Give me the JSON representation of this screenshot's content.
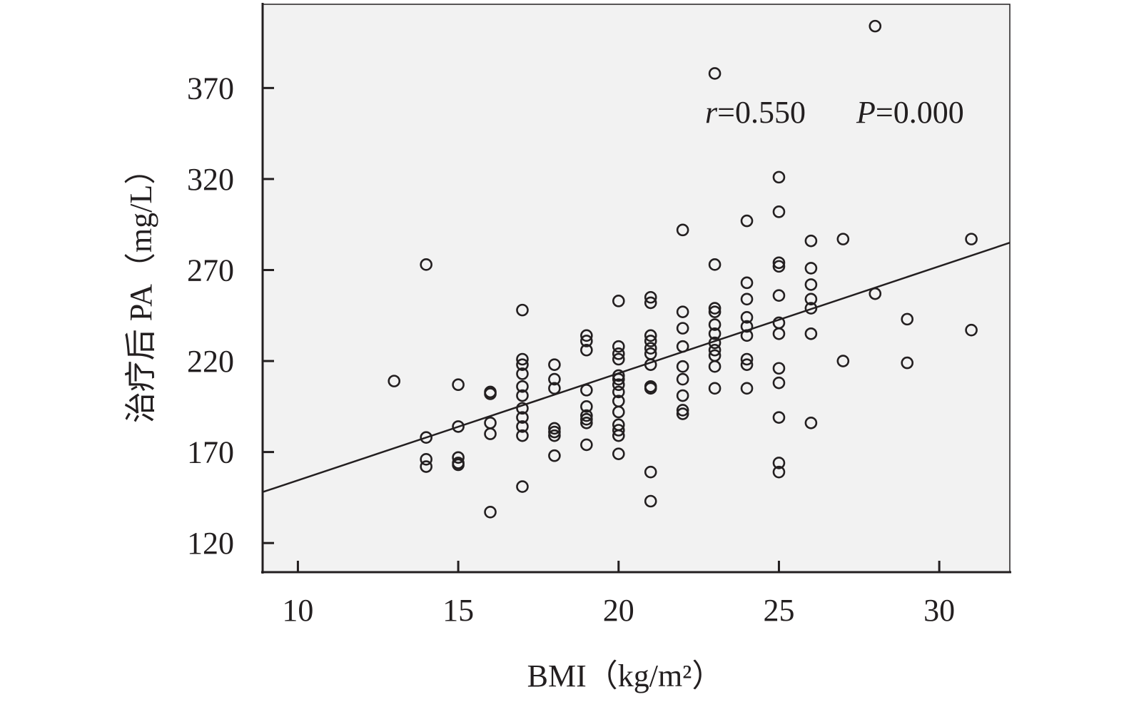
{
  "chart_data": {
    "type": "scatter",
    "title": "",
    "xlabel": "BMI（kg/m²）",
    "ylabel": "治疗后 PA（mg/L）",
    "xlim": [
      8.9,
      32.2
    ],
    "ylim": [
      104,
      416
    ],
    "xticks": [
      10,
      15,
      20,
      25,
      30
    ],
    "yticks": [
      120,
      170,
      220,
      270,
      320,
      370
    ],
    "grid": false,
    "legend": "none",
    "plot_background": "#f2f2f2",
    "marker": "open-circle",
    "color": "#231f20",
    "annotation": {
      "r_label": "r",
      "r_value": "=0.550",
      "p_label": "P",
      "p_value": "=0.000"
    },
    "fit_line": {
      "x": [
        8.9,
        32.2
      ],
      "y": [
        148,
        285
      ]
    },
    "points": [
      [
        13,
        209
      ],
      [
        14,
        273
      ],
      [
        14,
        178
      ],
      [
        14,
        166
      ],
      [
        14,
        162
      ],
      [
        15,
        207
      ],
      [
        15,
        184
      ],
      [
        15,
        167
      ],
      [
        15,
        164
      ],
      [
        15,
        163
      ],
      [
        16,
        203
      ],
      [
        16,
        202
      ],
      [
        16,
        186
      ],
      [
        16,
        180
      ],
      [
        16,
        137
      ],
      [
        17,
        248
      ],
      [
        17,
        221
      ],
      [
        17,
        218
      ],
      [
        17,
        213
      ],
      [
        17,
        206
      ],
      [
        17,
        201
      ],
      [
        17,
        194
      ],
      [
        17,
        189
      ],
      [
        17,
        184
      ],
      [
        17,
        179
      ],
      [
        17,
        151
      ],
      [
        18,
        218
      ],
      [
        18,
        210
      ],
      [
        18,
        205
      ],
      [
        18,
        183
      ],
      [
        18,
        181
      ],
      [
        18,
        179
      ],
      [
        18,
        168
      ],
      [
        19,
        234
      ],
      [
        19,
        231
      ],
      [
        19,
        226
      ],
      [
        19,
        204
      ],
      [
        19,
        195
      ],
      [
        19,
        190
      ],
      [
        19,
        188
      ],
      [
        19,
        186
      ],
      [
        19,
        174
      ],
      [
        20,
        253
      ],
      [
        20,
        228
      ],
      [
        20,
        224
      ],
      [
        20,
        221
      ],
      [
        20,
        212
      ],
      [
        20,
        210
      ],
      [
        20,
        207
      ],
      [
        20,
        203
      ],
      [
        20,
        198
      ],
      [
        20,
        192
      ],
      [
        20,
        185
      ],
      [
        20,
        182
      ],
      [
        20,
        179
      ],
      [
        20,
        169
      ],
      [
        21,
        255
      ],
      [
        21,
        252
      ],
      [
        21,
        234
      ],
      [
        21,
        231
      ],
      [
        21,
        227
      ],
      [
        21,
        224
      ],
      [
        21,
        218
      ],
      [
        21,
        206
      ],
      [
        21,
        205
      ],
      [
        21,
        159
      ],
      [
        21,
        143
      ],
      [
        22,
        292
      ],
      [
        22,
        247
      ],
      [
        22,
        238
      ],
      [
        22,
        228
      ],
      [
        22,
        217
      ],
      [
        22,
        210
      ],
      [
        22,
        201
      ],
      [
        22,
        193
      ],
      [
        22,
        191
      ],
      [
        23,
        378
      ],
      [
        23,
        273
      ],
      [
        23,
        249
      ],
      [
        23,
        247
      ],
      [
        23,
        240
      ],
      [
        23,
        235
      ],
      [
        23,
        230
      ],
      [
        23,
        226
      ],
      [
        23,
        223
      ],
      [
        23,
        217
      ],
      [
        23,
        205
      ],
      [
        24,
        297
      ],
      [
        24,
        263
      ],
      [
        24,
        254
      ],
      [
        24,
        244
      ],
      [
        24,
        239
      ],
      [
        24,
        234
      ],
      [
        24,
        221
      ],
      [
        24,
        218
      ],
      [
        24,
        205
      ],
      [
        25,
        321
      ],
      [
        25,
        302
      ],
      [
        25,
        274
      ],
      [
        25,
        272
      ],
      [
        25,
        256
      ],
      [
        25,
        241
      ],
      [
        25,
        235
      ],
      [
        25,
        216
      ],
      [
        25,
        208
      ],
      [
        25,
        189
      ],
      [
        25,
        164
      ],
      [
        25,
        159
      ],
      [
        26,
        286
      ],
      [
        26,
        271
      ],
      [
        26,
        262
      ],
      [
        26,
        254
      ],
      [
        26,
        249
      ],
      [
        26,
        235
      ],
      [
        26,
        186
      ],
      [
        27,
        287
      ],
      [
        27,
        220
      ],
      [
        28,
        404
      ],
      [
        28,
        257
      ],
      [
        29,
        243
      ],
      [
        29,
        219
      ],
      [
        31,
        287
      ],
      [
        31,
        237
      ]
    ]
  }
}
